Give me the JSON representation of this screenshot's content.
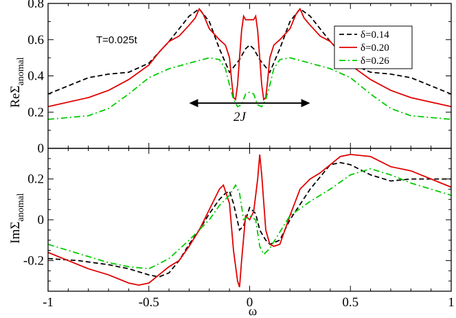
{
  "chart_data": [
    {
      "type": "line",
      "panel": "top",
      "ylabel": "ReΣ",
      "ylabel_sub": "anomal",
      "xlim": [
        -1,
        1
      ],
      "ylim": [
        0,
        0.8
      ],
      "yticks": [
        0,
        0.2,
        0.4,
        0.6,
        0.8
      ],
      "ytick_labels": [
        "0",
        "0.2",
        "0.4",
        "0.6",
        "0.8"
      ],
      "annotations": {
        "temperature": "T=0.025t",
        "gap": "2J"
      },
      "gap_arrow_x": [
        -0.3,
        0.3
      ],
      "gap_arrow_y": 0.25,
      "legend_position": "top-right",
      "series": [
        {
          "name": "δ=0.14",
          "color": "#000000",
          "dash": "dashed",
          "x": [
            -1,
            -0.8,
            -0.7,
            -0.6,
            -0.5,
            -0.4,
            -0.35,
            -0.3,
            -0.25,
            -0.2,
            -0.15,
            -0.1,
            -0.05,
            -0.02,
            0,
            0.02,
            0.05,
            0.1,
            0.15,
            0.2,
            0.25,
            0.3,
            0.35,
            0.4,
            0.5,
            0.6,
            0.7,
            0.8,
            1
          ],
          "y": [
            0.3,
            0.39,
            0.41,
            0.42,
            0.47,
            0.59,
            0.66,
            0.73,
            0.77,
            0.7,
            0.55,
            0.42,
            0.49,
            0.55,
            0.57,
            0.55,
            0.49,
            0.42,
            0.55,
            0.7,
            0.77,
            0.73,
            0.66,
            0.59,
            0.47,
            0.42,
            0.41,
            0.39,
            0.3
          ]
        },
        {
          "name": "δ=0.20",
          "color": "#e00000",
          "dash": "solid",
          "x": [
            -1,
            -0.8,
            -0.7,
            -0.6,
            -0.5,
            -0.45,
            -0.4,
            -0.35,
            -0.3,
            -0.27,
            -0.25,
            -0.23,
            -0.2,
            -0.15,
            -0.12,
            -0.1,
            -0.09,
            -0.08,
            -0.07,
            -0.06,
            -0.05,
            -0.04,
            -0.03,
            -0.02,
            0,
            0.02,
            0.03,
            0.04,
            0.05,
            0.06,
            0.07,
            0.08,
            0.09,
            0.1,
            0.12,
            0.15,
            0.2,
            0.23,
            0.25,
            0.27,
            0.3,
            0.35,
            0.4,
            0.45,
            0.5,
            0.6,
            0.7,
            0.8,
            1
          ],
          "y": [
            0.23,
            0.28,
            0.32,
            0.38,
            0.46,
            0.53,
            0.59,
            0.62,
            0.68,
            0.72,
            0.77,
            0.74,
            0.66,
            0.6,
            0.57,
            0.5,
            0.38,
            0.28,
            0.27,
            0.35,
            0.5,
            0.65,
            0.73,
            0.71,
            0.71,
            0.71,
            0.73,
            0.65,
            0.5,
            0.35,
            0.27,
            0.28,
            0.38,
            0.5,
            0.57,
            0.6,
            0.66,
            0.74,
            0.77,
            0.72,
            0.68,
            0.62,
            0.59,
            0.53,
            0.46,
            0.38,
            0.32,
            0.28,
            0.23
          ]
        },
        {
          "name": "δ=0.26",
          "color": "#00cc00",
          "dash": "dashdot",
          "x": [
            -1,
            -0.8,
            -0.7,
            -0.6,
            -0.5,
            -0.4,
            -0.3,
            -0.2,
            -0.15,
            -0.12,
            -0.1,
            -0.08,
            -0.06,
            -0.04,
            -0.02,
            0,
            0.02,
            0.04,
            0.06,
            0.08,
            0.1,
            0.12,
            0.15,
            0.2,
            0.3,
            0.4,
            0.5,
            0.6,
            0.7,
            0.8,
            1
          ],
          "y": [
            0.16,
            0.18,
            0.22,
            0.3,
            0.39,
            0.44,
            0.47,
            0.5,
            0.49,
            0.44,
            0.35,
            0.27,
            0.23,
            0.24,
            0.3,
            0.31,
            0.3,
            0.24,
            0.23,
            0.27,
            0.35,
            0.44,
            0.49,
            0.5,
            0.47,
            0.44,
            0.39,
            0.3,
            0.22,
            0.18,
            0.16
          ]
        }
      ]
    },
    {
      "type": "line",
      "panel": "bottom",
      "xlabel": "ω",
      "ylabel": "ImΣ",
      "ylabel_sub": "anomal",
      "xlim": [
        -1,
        1
      ],
      "ylim": [
        -0.35,
        0.35
      ],
      "xticks": [
        -1,
        -0.5,
        0,
        0.5,
        1
      ],
      "xtick_labels": [
        "-1",
        "-0.5",
        "0",
        "0.5",
        "1"
      ],
      "yticks": [
        -0.2,
        0,
        0.2
      ],
      "ytick_labels": [
        "-0.2",
        "0",
        "0.2"
      ],
      "series": [
        {
          "name": "δ=0.14",
          "color": "#000000",
          "dash": "dashed",
          "x": [
            -1,
            -0.85,
            -0.7,
            -0.6,
            -0.5,
            -0.45,
            -0.4,
            -0.35,
            -0.3,
            -0.25,
            -0.2,
            -0.15,
            -0.12,
            -0.1,
            -0.08,
            -0.05,
            -0.03,
            0,
            0.03,
            0.05,
            0.08,
            0.1,
            0.15,
            0.2,
            0.3,
            0.4,
            0.45,
            0.5,
            0.6,
            0.7,
            0.8,
            0.9,
            1
          ],
          "y": [
            -0.19,
            -0.2,
            -0.22,
            -0.24,
            -0.27,
            -0.28,
            -0.26,
            -0.2,
            -0.12,
            -0.05,
            0.03,
            0.1,
            0.13,
            0.14,
            0.08,
            -0.05,
            -0.03,
            0.06,
            0.03,
            -0.05,
            -0.1,
            -0.12,
            -0.1,
            0.0,
            0.15,
            0.27,
            0.28,
            0.27,
            0.22,
            0.19,
            0.2,
            0.2,
            0.2
          ]
        },
        {
          "name": "δ=0.20",
          "color": "#e00000",
          "dash": "solid",
          "x": [
            -1,
            -0.9,
            -0.8,
            -0.7,
            -0.6,
            -0.55,
            -0.5,
            -0.45,
            -0.4,
            -0.35,
            -0.3,
            -0.25,
            -0.2,
            -0.15,
            -0.13,
            -0.11,
            -0.1,
            -0.08,
            -0.06,
            -0.05,
            -0.04,
            -0.02,
            0,
            0.02,
            0.04,
            0.05,
            0.06,
            0.08,
            0.1,
            0.12,
            0.15,
            0.2,
            0.25,
            0.3,
            0.35,
            0.4,
            0.45,
            0.5,
            0.6,
            0.7,
            0.8,
            0.9,
            1
          ],
          "y": [
            -0.16,
            -0.2,
            -0.24,
            -0.27,
            -0.31,
            -0.32,
            -0.31,
            -0.27,
            -0.23,
            -0.2,
            -0.13,
            -0.05,
            0.05,
            0.15,
            0.17,
            0.11,
            0.08,
            -0.15,
            -0.3,
            -0.33,
            -0.2,
            0.02,
            0.0,
            0.04,
            0.2,
            0.32,
            0.22,
            -0.05,
            -0.12,
            -0.13,
            -0.12,
            0.02,
            0.15,
            0.2,
            0.23,
            0.27,
            0.31,
            0.32,
            0.31,
            0.26,
            0.24,
            0.2,
            0.16
          ]
        },
        {
          "name": "δ=0.26",
          "color": "#00cc00",
          "dash": "dashdot",
          "x": [
            -1,
            -0.9,
            -0.8,
            -0.7,
            -0.6,
            -0.5,
            -0.4,
            -0.3,
            -0.2,
            -0.15,
            -0.1,
            -0.07,
            -0.05,
            -0.03,
            0,
            0.03,
            0.05,
            0.07,
            0.1,
            0.15,
            0.2,
            0.3,
            0.4,
            0.5,
            0.6,
            0.7,
            0.8,
            0.9,
            1
          ],
          "y": [
            -0.12,
            -0.15,
            -0.18,
            -0.21,
            -0.23,
            -0.24,
            -0.19,
            -0.1,
            0.0,
            0.07,
            0.12,
            0.17,
            0.13,
            0.0,
            0.02,
            0.0,
            -0.13,
            -0.17,
            -0.14,
            -0.06,
            0.02,
            0.09,
            0.15,
            0.22,
            0.25,
            0.22,
            0.18,
            0.15,
            0.12
          ]
        }
      ]
    }
  ]
}
